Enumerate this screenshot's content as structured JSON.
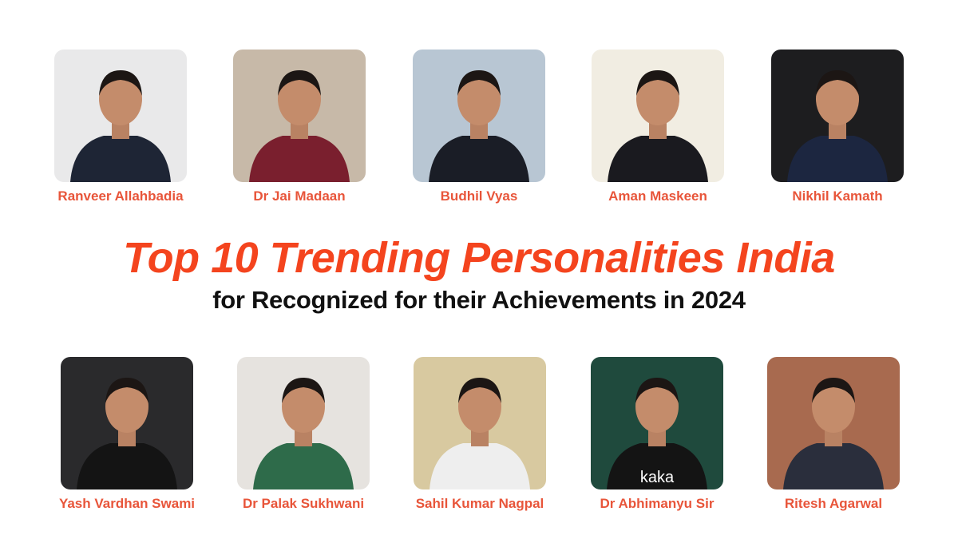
{
  "title": "Top 10 Trending Personalities India",
  "subtitle": "for Recognized for their Achievements in 2024",
  "colors": {
    "title": "#f4441e",
    "name": "#e8553a",
    "subtitle": "#111111"
  },
  "top_row": [
    {
      "name": "Ranveer Allahbadia",
      "bg": "#e9e9ea",
      "outfit": "#1e2535"
    },
    {
      "name": "Dr Jai Madaan",
      "bg": "#c7b9a8",
      "outfit": "#7a1f2e"
    },
    {
      "name": "Budhil Vyas",
      "bg": "#b8c6d3",
      "outfit": "#1a1d26"
    },
    {
      "name": "Aman Maskeen",
      "bg": "#f1ede2",
      "outfit": "#1a1a1f"
    },
    {
      "name": "Nikhil Kamath",
      "bg": "#1d1d1f",
      "outfit": "#1c2640"
    }
  ],
  "bottom_row": [
    {
      "name": "Yash Vardhan Swami",
      "bg": "#2a2a2c",
      "outfit": "#141414"
    },
    {
      "name": "Dr Palak Sukhwani",
      "bg": "#e6e3df",
      "outfit": "#2e6b4a"
    },
    {
      "name": "Sahil Kumar Nagpal",
      "bg": "#d8c9a0",
      "outfit": "#eeeeee"
    },
    {
      "name": "Dr Abhimanyu Sir",
      "bg": "#1f4a3d",
      "outfit": "#141414",
      "shirt_text": "kaka"
    },
    {
      "name": "Ritesh Agarwal",
      "bg": "#a86a4f",
      "outfit": "#2a2e3c"
    }
  ]
}
